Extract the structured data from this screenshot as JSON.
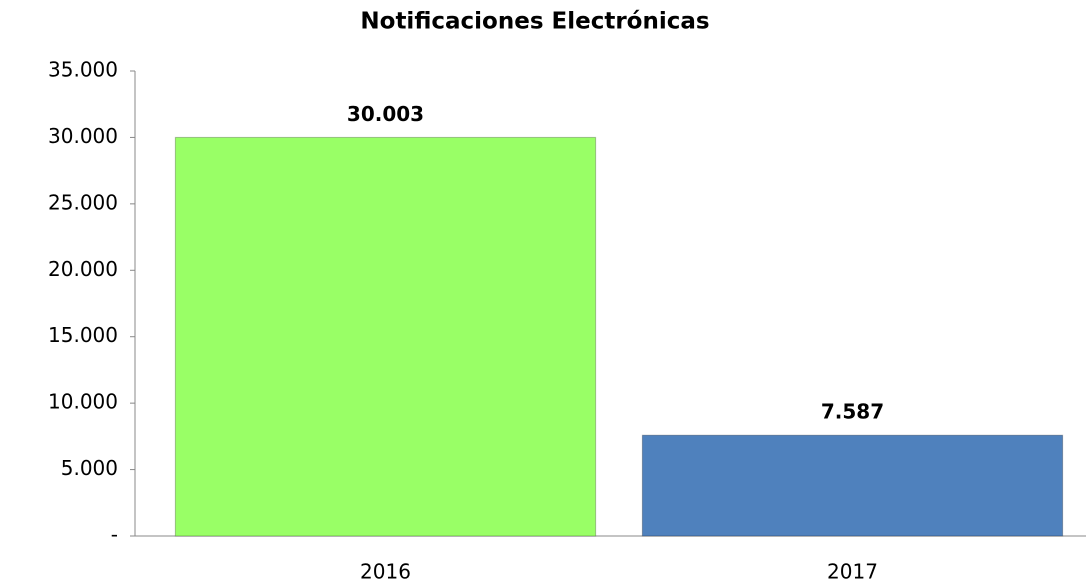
{
  "chart_data": {
    "type": "bar",
    "title": "Notificaciones Electrónicas",
    "categories": [
      "2016",
      "2017"
    ],
    "values": [
      30003,
      7587
    ],
    "value_labels": [
      "30.003",
      "7.587"
    ],
    "colors": [
      "#99ff66",
      "#4f81bd"
    ],
    "ylim": [
      0,
      35000
    ],
    "yticks": [
      {
        "value": 0,
        "label": "-"
      },
      {
        "value": 5000,
        "label": "5.000"
      },
      {
        "value": 10000,
        "label": "10.000"
      },
      {
        "value": 15000,
        "label": "15.000"
      },
      {
        "value": 20000,
        "label": "20.000"
      },
      {
        "value": 25000,
        "label": "25.000"
      },
      {
        "value": 30000,
        "label": "30.000"
      },
      {
        "value": 35000,
        "label": "35.000"
      }
    ],
    "grid": false
  }
}
